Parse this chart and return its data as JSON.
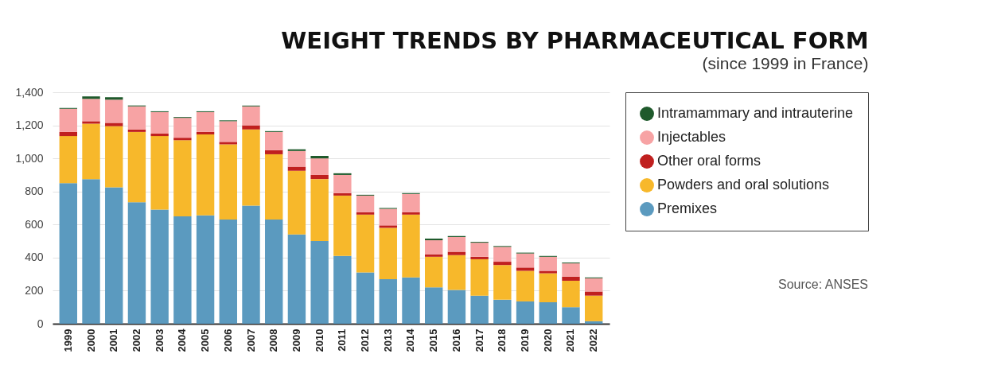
{
  "chart_data": {
    "type": "bar",
    "title": "WEIGHT TRENDS BY PHARMACEUTICAL FORM",
    "subtitle": "(since 1999 in France)",
    "stacked": true,
    "categories": [
      "1999",
      "2000",
      "2001",
      "2002",
      "2003",
      "2004",
      "2005",
      "2006",
      "2007",
      "2008",
      "2009",
      "2010",
      "2011",
      "2012",
      "2013",
      "2014",
      "2015",
      "2016",
      "2017",
      "2018",
      "2019",
      "2020",
      "2021",
      "2022"
    ],
    "series": [
      {
        "name": "Premixes",
        "color": "#5b9abf",
        "values": [
          850,
          875,
          825,
          735,
          690,
          650,
          655,
          630,
          715,
          630,
          540,
          500,
          410,
          310,
          270,
          280,
          220,
          205,
          170,
          145,
          135,
          130,
          100,
          15
        ]
      },
      {
        "name": "Powders and oral solutions",
        "color": "#f7b82b",
        "values": [
          285,
          335,
          370,
          425,
          445,
          460,
          490,
          455,
          460,
          395,
          385,
          375,
          365,
          350,
          310,
          380,
          185,
          210,
          220,
          210,
          185,
          175,
          160,
          155
        ]
      },
      {
        "name": "Other oral forms",
        "color": "#c0201f",
        "values": [
          25,
          15,
          20,
          15,
          15,
          15,
          15,
          15,
          25,
          25,
          25,
          25,
          15,
          15,
          15,
          15,
          15,
          20,
          15,
          20,
          20,
          15,
          25,
          25
        ]
      },
      {
        "name": "Injectables",
        "color": "#f7a3a4",
        "values": [
          140,
          135,
          140,
          140,
          130,
          120,
          120,
          125,
          115,
          110,
          95,
          100,
          110,
          100,
          100,
          110,
          85,
          90,
          85,
          90,
          85,
          85,
          80,
          80
        ]
      },
      {
        "name": "Intramammary and intrauterine",
        "color": "#1f5a2c",
        "values": [
          5,
          15,
          15,
          5,
          5,
          5,
          5,
          5,
          5,
          5,
          10,
          15,
          10,
          5,
          5,
          5,
          10,
          5,
          5,
          5,
          5,
          5,
          5,
          5
        ]
      }
    ],
    "ylim": [
      0,
      1400
    ],
    "yticks": [
      0,
      200,
      400,
      600,
      800,
      {
        "value": 1000,
        "label": "1,000"
      },
      {
        "value": 1200,
        "label": "1,200"
      },
      {
        "value": 1400,
        "label": "1,400"
      }
    ],
    "grid": "y",
    "legend": "right",
    "annotations": [
      "Source: ANSES"
    ]
  }
}
